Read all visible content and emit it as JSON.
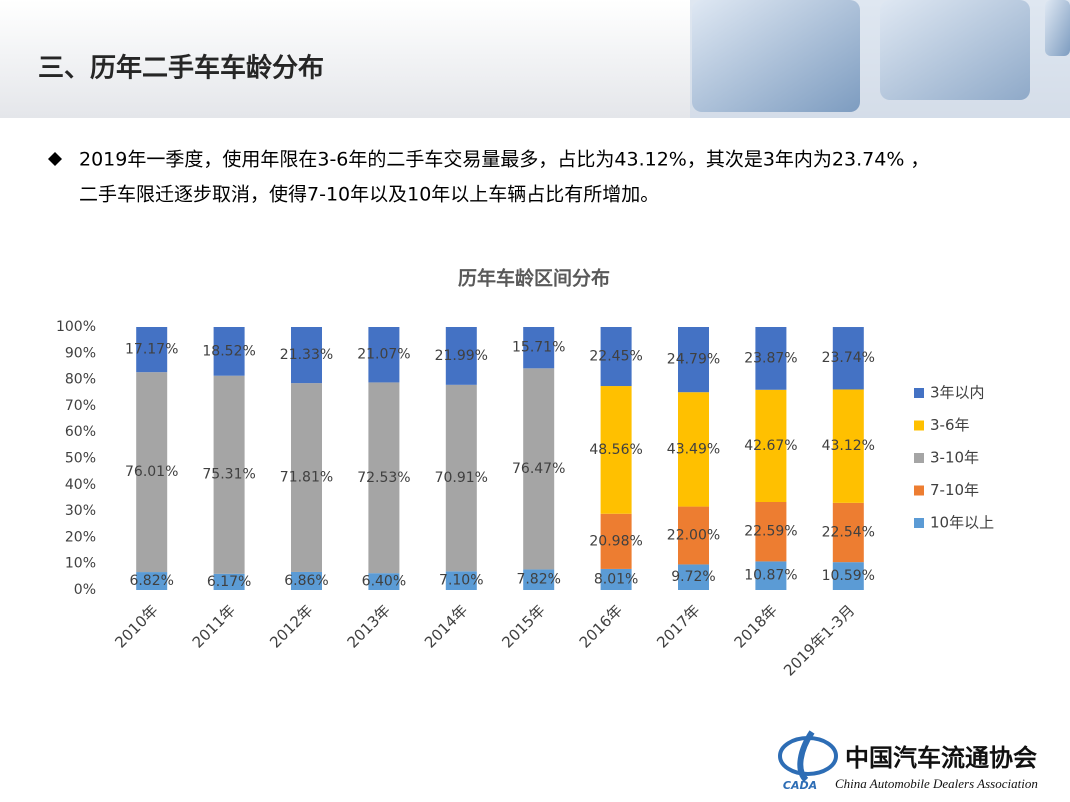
{
  "slide": {
    "title": "三、历年二手车车龄分布",
    "bullet_lines": [
      "2019年一季度，使用年限在3-6年的二手车交易量最多，占比为43.12%，其次是3年内为23.74% ，",
      "二手车限迁逐步取消，使得7-10年以及10年以上车辆占比有所增加。"
    ],
    "logo_mark": "CADA",
    "org_name": "中国汽车流通协会",
    "org_name_en": "China Automobile Dealers Association"
  },
  "chart_data": {
    "type": "stacked_bar",
    "title": "历年车龄区间分布",
    "categories": [
      "2010年",
      "2011年",
      "2012年",
      "2013年",
      "2014年",
      "2015年",
      "2016年",
      "2017年",
      "2018年",
      "2019年1-3月"
    ],
    "series": [
      {
        "name": "10年以上",
        "color": "#5b9bd5",
        "values": [
          6.82,
          6.17,
          6.86,
          6.4,
          7.1,
          7.82,
          8.01,
          9.72,
          10.87,
          10.59
        ],
        "value_labels": [
          "6.82%",
          "6.17%",
          "6.86%",
          "6.40%",
          "7.10%",
          "7.82%",
          "8.01%",
          "9.72%",
          "10.87%",
          "10.59%"
        ]
      },
      {
        "name": "7-10年",
        "color": "#ed7d31",
        "values": [
          null,
          null,
          null,
          null,
          null,
          null,
          20.98,
          22.0,
          22.59,
          22.54
        ],
        "value_labels": [
          null,
          null,
          null,
          null,
          null,
          null,
          "20.98%",
          "22.00%",
          "22.59%",
          "22.54%"
        ]
      },
      {
        "name": "3-10年",
        "color": "#a5a5a5",
        "values": [
          76.01,
          75.31,
          71.81,
          72.53,
          70.91,
          76.47,
          null,
          null,
          null,
          null
        ],
        "value_labels": [
          "76.01%",
          "75.31%",
          "71.81%",
          "72.53%",
          "70.91%",
          "76.47%",
          null,
          null,
          null,
          null
        ]
      },
      {
        "name": "3-6年",
        "color": "#ffc000",
        "values": [
          null,
          null,
          null,
          null,
          null,
          null,
          48.56,
          43.49,
          42.67,
          43.12
        ],
        "value_labels": [
          null,
          null,
          null,
          null,
          null,
          null,
          "48.56%",
          "43.49%",
          "42.67%",
          "43.12%"
        ]
      },
      {
        "name": "3年以内",
        "color": "#4472c4",
        "values": [
          17.17,
          18.52,
          21.33,
          21.07,
          21.99,
          15.71,
          22.45,
          24.79,
          23.87,
          23.74
        ],
        "value_labels": [
          "17.17%",
          "18.52%",
          "21.33%",
          "21.07%",
          "21.99%",
          "15.71%",
          "22.45%",
          "24.79%",
          "23.87%",
          "23.74%"
        ]
      }
    ],
    "ylim": [
      0,
      100
    ],
    "yticks": [
      {
        "value": 0,
        "label": "0%"
      },
      {
        "value": 10,
        "label": "10%"
      },
      {
        "value": 20,
        "label": "20%"
      },
      {
        "value": 30,
        "label": "30%"
      },
      {
        "value": 40,
        "label": "40%"
      },
      {
        "value": 50,
        "label": "50%"
      },
      {
        "value": 60,
        "label": "60%"
      },
      {
        "value": 70,
        "label": "70%"
      },
      {
        "value": 80,
        "label": "80%"
      },
      {
        "value": 90,
        "label": "90%"
      },
      {
        "value": 100,
        "label": "100%"
      }
    ],
    "grid": false,
    "legend": "right"
  }
}
